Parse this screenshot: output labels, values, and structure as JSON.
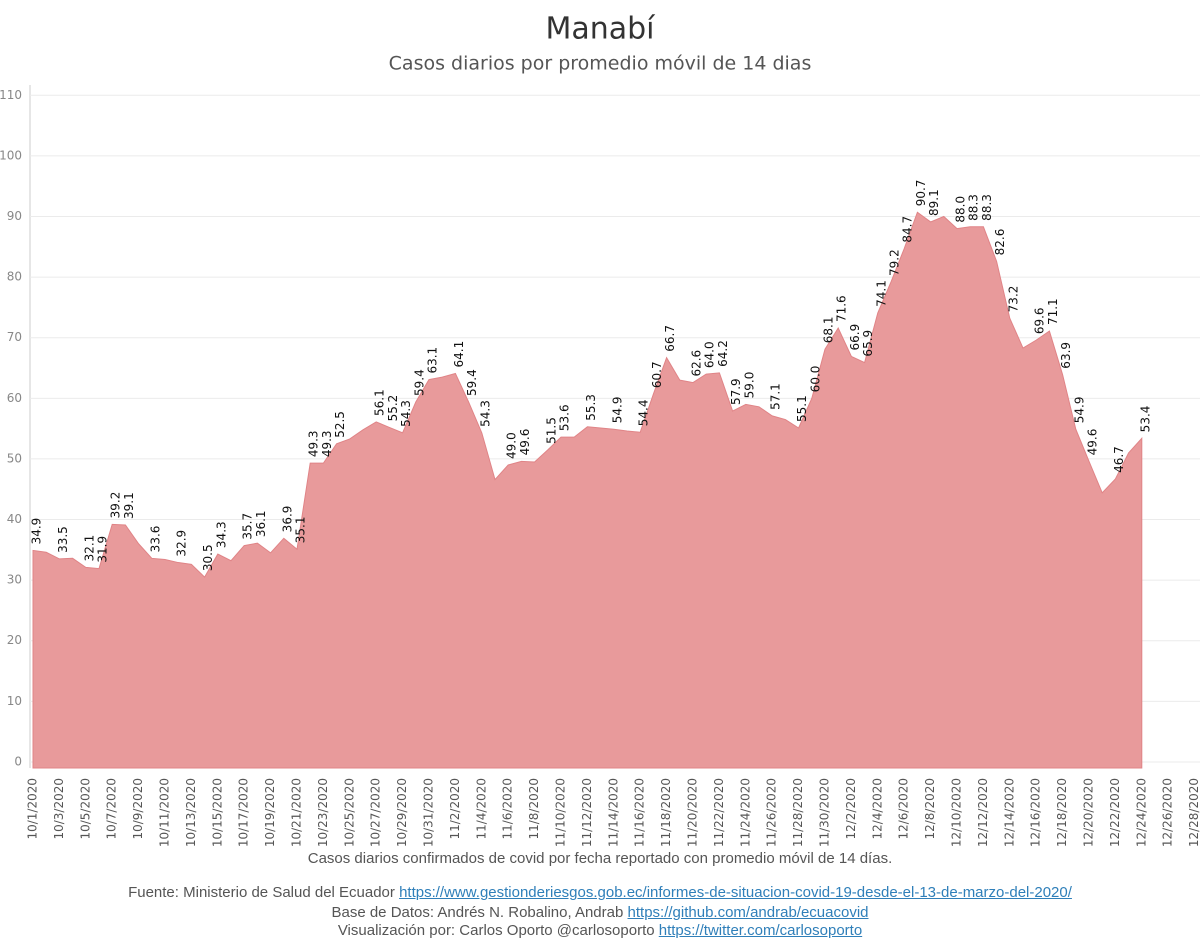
{
  "chart_data": {
    "type": "area",
    "title": "Manabí",
    "subtitle": "Casos diarios por promedio móvil de 14 dias",
    "x_label": "Casos diarios confirmados de covid por fecha reportado con promedio móvil de 14 días.",
    "color": "#e89a9b",
    "ylim": [
      -1,
      110
    ],
    "yticks": [
      0,
      10,
      20,
      30,
      40,
      50,
      60,
      70,
      80,
      90,
      100,
      110
    ],
    "grid": true,
    "categories": [
      "10/1/2020",
      null,
      "10/3/2020",
      null,
      "10/5/2020",
      null,
      "10/7/2020",
      null,
      "10/9/2020",
      null,
      "10/11/2020",
      null,
      "10/13/2020",
      null,
      "10/15/2020",
      null,
      "10/17/2020",
      null,
      "10/19/2020",
      null,
      "10/21/2020",
      null,
      "10/23/2020",
      null,
      "10/25/2020",
      null,
      "10/27/2020",
      null,
      "10/29/2020",
      null,
      "10/31/2020",
      null,
      "11/2/2020",
      null,
      "11/4/2020",
      null,
      "11/6/2020",
      null,
      "11/8/2020",
      null,
      "11/10/2020",
      null,
      "11/12/2020",
      null,
      "11/14/2020",
      null,
      "11/16/2020",
      null,
      "11/18/2020",
      null,
      "11/20/2020",
      null,
      "11/22/2020",
      null,
      "11/24/2020",
      null,
      "11/26/2020",
      null,
      "11/28/2020",
      null,
      "11/30/2020",
      null,
      "12/2/2020",
      null,
      "12/4/2020",
      null,
      "12/6/2020",
      null,
      "12/8/2020",
      null,
      "12/10/2020",
      null,
      "12/12/2020",
      null,
      "12/14/2020",
      null,
      "12/16/2020",
      null,
      "12/18/2020",
      null,
      "12/20/2020",
      null,
      "12/22/2020",
      null,
      "12/24/2020",
      null,
      "12/26/2020",
      null,
      "12/28/2020"
    ],
    "values": [
      34.9,
      34.6,
      33.5,
      33.6,
      32.1,
      31.9,
      39.2,
      39.1,
      36.0,
      33.6,
      33.4,
      32.9,
      32.6,
      30.5,
      34.3,
      33.2,
      35.7,
      36.1,
      34.5,
      36.9,
      35.1,
      49.3,
      49.3,
      52.5,
      53.3,
      54.8,
      56.1,
      55.2,
      54.3,
      59.4,
      63.1,
      63.5,
      64.1,
      59.4,
      54.3,
      46.6,
      49.0,
      49.6,
      49.5,
      51.5,
      53.6,
      53.6,
      55.3,
      55.1,
      54.9,
      54.6,
      54.4,
      60.7,
      66.7,
      63.0,
      62.6,
      64.0,
      64.2,
      57.9,
      59.0,
      58.6,
      57.1,
      56.5,
      55.1,
      60.0,
      68.1,
      71.6,
      66.9,
      65.9,
      74.1,
      79.2,
      84.7,
      90.7,
      89.1,
      90.0,
      88.0,
      88.3,
      88.3,
      82.6,
      73.2,
      68.3,
      69.6,
      71.1,
      63.9,
      54.9,
      49.6,
      44.4,
      46.7,
      51.0,
      53.4,
      null,
      null,
      null,
      null
    ],
    "value_labels": [
      "34.9",
      null,
      "33.5",
      null,
      "32.1",
      "31.9",
      "39.2",
      "39.1",
      null,
      "33.6",
      null,
      "32.9",
      null,
      "30.5",
      "34.3",
      null,
      "35.7",
      "36.1",
      null,
      "36.9",
      "35.1",
      "49.3",
      "49.3",
      "52.5",
      null,
      null,
      "56.1",
      "55.2",
      "54.3",
      "59.4",
      "63.1",
      null,
      "64.1",
      "59.4",
      "54.3",
      null,
      "49.0",
      "49.6",
      null,
      "51.5",
      "53.6",
      null,
      "55.3",
      null,
      "54.9",
      null,
      "54.4",
      "60.7",
      "66.7",
      null,
      "62.6",
      "64.0",
      "64.2",
      "57.9",
      "59.0",
      null,
      "57.1",
      null,
      "55.1",
      "60.0",
      "68.1",
      "71.6",
      "66.9",
      "65.9",
      "74.1",
      "79.2",
      "84.7",
      "90.7",
      "89.1",
      null,
      "88.0",
      "88.3",
      "88.3",
      "82.6",
      "73.2",
      null,
      "69.6",
      "71.1",
      "63.9",
      "54.9",
      "49.6",
      null,
      "46.7",
      null,
      "53.4",
      null,
      null,
      null,
      null
    ]
  },
  "footer": {
    "source_text": "Fuente: Ministerio de Salud del Ecuador",
    "source_link": "https://www.gestionderiesgos.gob.ec/informes-de-situacion-covid-19-desde-el-13-de-marzo-del-2020/",
    "data_text": "Base de Datos: Andrés N. Robalino, Andrab",
    "data_link": "https://github.com/andrab/ecuacovid",
    "viz_text": "Visualización por: Carlos Oporto @carlosoporto",
    "viz_link": "https://twitter.com/carlosoporto"
  }
}
